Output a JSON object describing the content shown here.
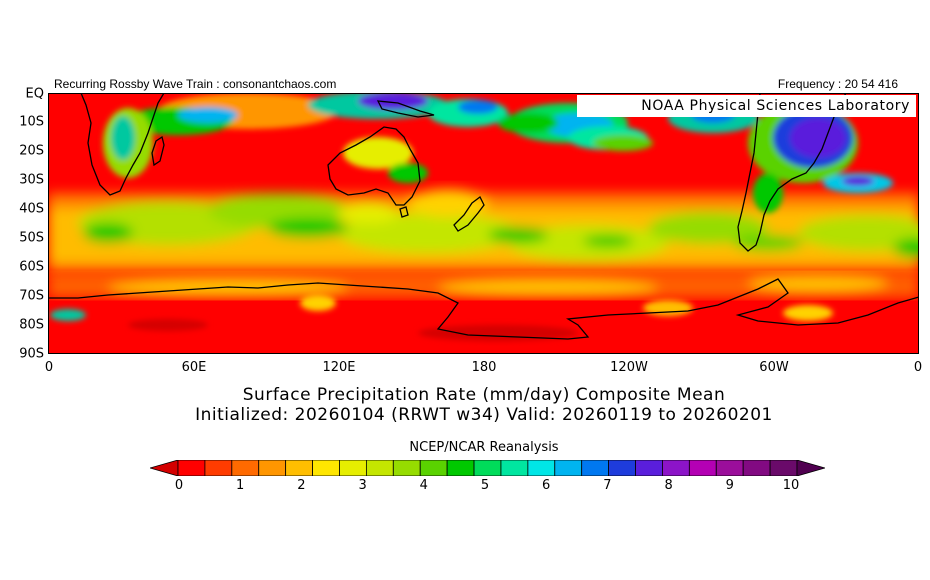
{
  "header": {
    "left": "Recurring Rossby Wave Train : consonantchaos.com",
    "right": "Frequency : 20 54 416"
  },
  "badge": "NOAA  Physical  Sciences  Laboratory",
  "latitude_labels": [
    "EQ",
    "10S",
    "20S",
    "30S",
    "40S",
    "50S",
    "60S",
    "70S",
    "80S",
    "90S"
  ],
  "longitude_labels": [
    "0",
    "60E",
    "120E",
    "180",
    "120W",
    "60W",
    "0"
  ],
  "title_line1": "Surface Precipitation Rate (mm/day) Composite Mean",
  "title_line2": "Initialized: 20260104 (RRWT w34) Valid: 20260119 to 20260201",
  "source": "NCEP/NCAR Reanalysis",
  "colorbar": {
    "tick_labels": [
      "0",
      "1",
      "2",
      "3",
      "4",
      "5",
      "6",
      "7",
      "8",
      "9",
      "10"
    ],
    "colors": [
      "#d40000",
      "#ff0000",
      "#ff3c00",
      "#ff6a00",
      "#ff9600",
      "#ffbe00",
      "#ffe600",
      "#e6ee00",
      "#c4e600",
      "#96dc00",
      "#5ad200",
      "#00c800",
      "#00dc5a",
      "#00e6a0",
      "#00e6e6",
      "#00b4f0",
      "#0078f0",
      "#1e3cdc",
      "#5a1edc",
      "#8c14c8",
      "#b400b4",
      "#9b0e9b",
      "#820a82",
      "#6a0a6a",
      "#500050"
    ]
  }
}
